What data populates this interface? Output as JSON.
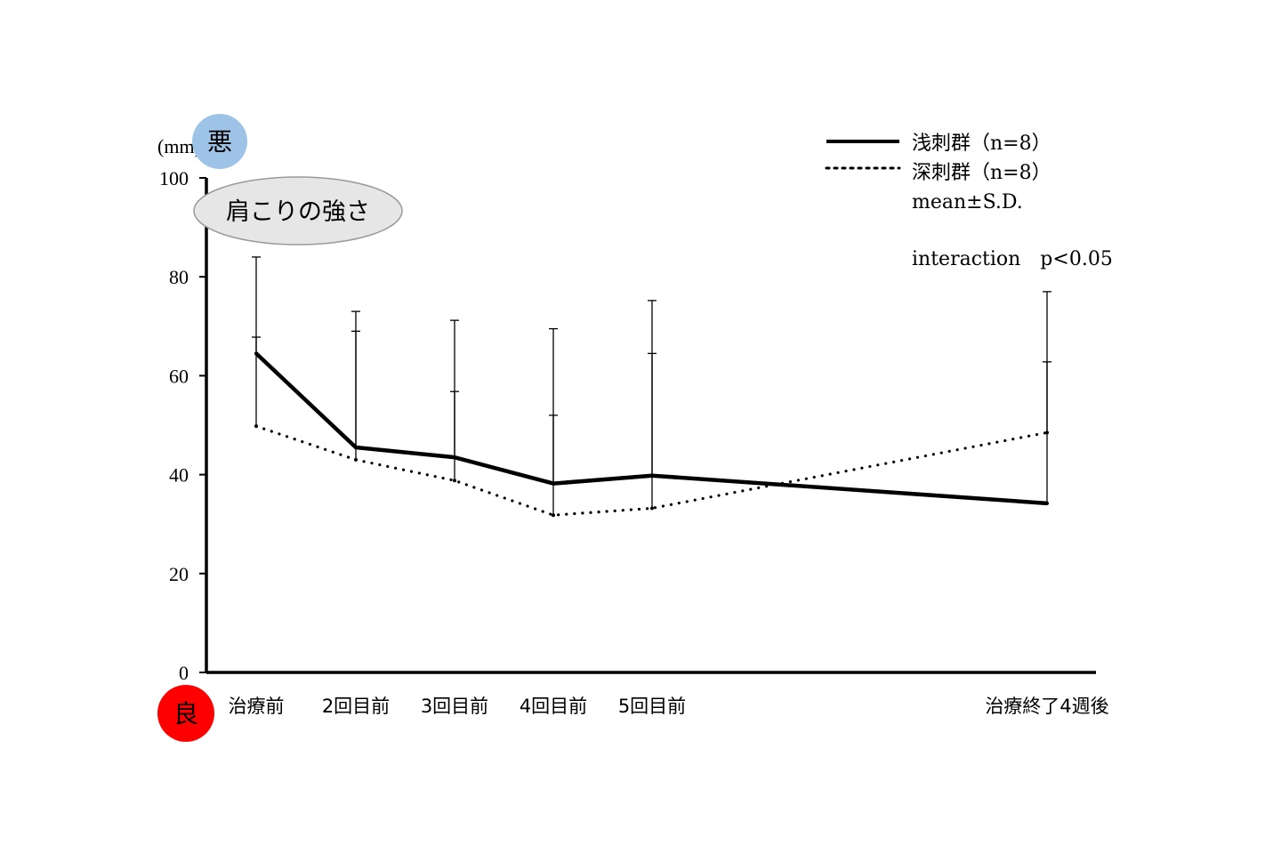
{
  "chart_data": {
    "type": "line",
    "unit_label": "(mm)",
    "ylim": [
      0,
      100
    ],
    "y_ticks": [
      "0",
      "20",
      "40",
      "60",
      "80",
      "100"
    ],
    "categories": [
      "治療前",
      "2回目前",
      "3回目前",
      "4回目前",
      "5回目前",
      "治療終了4週後"
    ],
    "series": [
      {
        "name": "浅刺群（n=8）",
        "style": "solid",
        "values": [
          64.5,
          45.5,
          43.5,
          38.2,
          39.8,
          34.2
        ],
        "sd_upper": [
          84.0,
          73.0,
          71.2,
          69.5,
          75.2,
          77.0
        ]
      },
      {
        "name": "深刺群（n=8）",
        "style": "dotted",
        "values": [
          49.8,
          43.0,
          38.8,
          31.8,
          33.2,
          48.5
        ],
        "sd_upper": [
          67.8,
          69.0,
          56.8,
          52.0,
          64.5,
          62.8
        ]
      }
    ],
    "annotations": [
      "mean±S.D.",
      "interaction　p<0.05"
    ],
    "legend_position": "top-right",
    "grid": false,
    "badges": {
      "top": "悪",
      "bottom": "良"
    },
    "title_ellipse": "肩こりの強さ",
    "colors": {
      "axis": "#000000",
      "badge_top": "#9dc3e6",
      "badge_bottom": "#ff0000",
      "ellipse_fill": "#e6e6e6",
      "ellipse_stroke": "#9a9a9a"
    }
  }
}
